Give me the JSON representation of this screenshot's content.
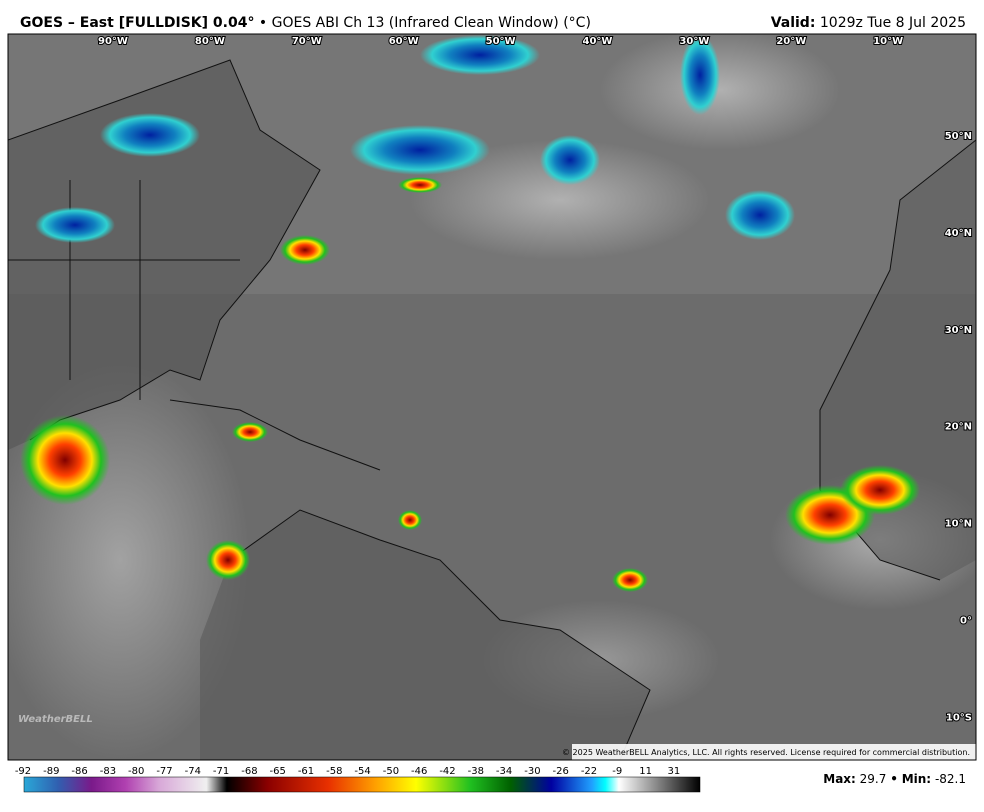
{
  "header": {
    "title": "GOES – East [FULLDISK] 0.04°",
    "separator": "•",
    "subtitle": "GOES ABI Ch 13 (Infrared Clean Window) (°C)",
    "valid_label": "Valid:",
    "valid_time": "1029z Tue 8 Jul 2025"
  },
  "map": {
    "longitude_labels": [
      "90°W",
      "80°W",
      "70°W",
      "60°W",
      "50°W",
      "40°W",
      "30°W",
      "20°W",
      "10°W"
    ],
    "latitude_labels": [
      "50°N",
      "40°N",
      "30°N",
      "20°N",
      "10°N",
      "0°",
      "10°S"
    ],
    "logo": "WeatherBELL",
    "copyright": "© 2025 WeatherBELL Analytics, LLC. All rights reserved. License required for commercial distribution."
  },
  "colorbar": {
    "ticks": [
      -92,
      -89,
      -86,
      -83,
      -80,
      -77,
      -74,
      -71,
      -68,
      -65,
      -61,
      -58,
      -54,
      -50,
      -46,
      -42,
      -38,
      -34,
      -30,
      -26,
      -22,
      -9,
      11,
      31
    ]
  },
  "footer": {
    "max_label": "Max:",
    "max_value": 29.7,
    "separator": "•",
    "min_label": "Min:",
    "min_value": -82.1
  }
}
